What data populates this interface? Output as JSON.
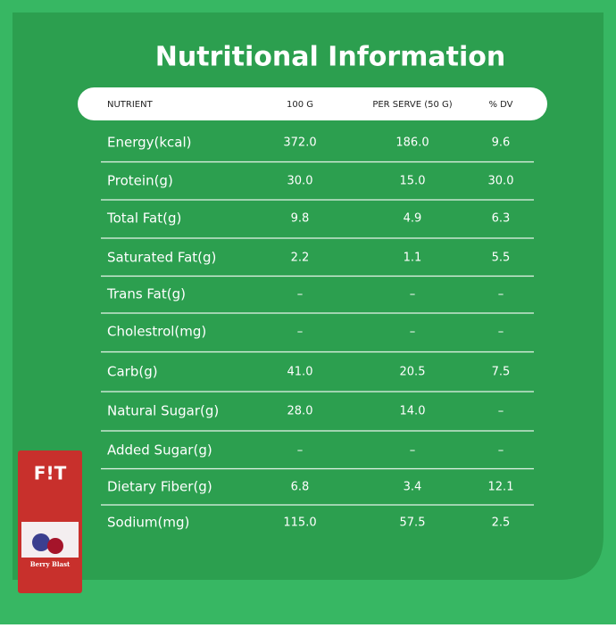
{
  "header": {
    "title": "Nutritional Information"
  },
  "table": {
    "columns": [
      "NUTRIENT",
      "100 G",
      "PER SERVE (50 G)",
      "% DV"
    ],
    "rows": [
      [
        "Energy(kcal)",
        "372.0",
        "186.0",
        "9.6"
      ],
      [
        "Protein(g)",
        "30.0",
        "15.0",
        "30.0"
      ],
      [
        "Total Fat(g)",
        "9.8",
        "4.9",
        "6.3"
      ],
      [
        "Saturated Fat(g)",
        "2.2",
        "1.1",
        "5.5"
      ],
      [
        "Trans Fat(g)",
        "–",
        "–",
        "–"
      ],
      [
        "Cholestrol(mg)",
        "–",
        "–",
        "–"
      ],
      [
        "Carb(g)",
        "41.0",
        "20.5",
        "7.5"
      ],
      [
        "Natural Sugar(g)",
        "28.0",
        "14.0",
        "–"
      ],
      [
        "Added Sugar(g)",
        "–",
        "–",
        "–"
      ],
      [
        "Dietary Fiber(g)",
        "6.8",
        "3.4",
        "12.1"
      ],
      [
        "Sodium(mg)",
        "115.0",
        "57.5",
        "2.5"
      ]
    ]
  },
  "product": {
    "brand": "F!T",
    "flavor": "Berry Blast"
  }
}
